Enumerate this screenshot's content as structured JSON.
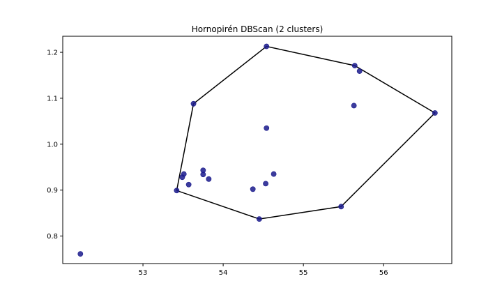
{
  "chart_data": {
    "type": "scatter",
    "title": "Hornopirén DBScan (2 clusters)",
    "xlabel": "",
    "ylabel": "",
    "xlim": [
      52.0,
      56.85
    ],
    "ylim": [
      0.74,
      1.235
    ],
    "xticks": [
      53,
      54,
      55,
      56
    ],
    "yticks": [
      0.8,
      0.9,
      1.0,
      1.1,
      1.2
    ],
    "xtick_labels": [
      "53",
      "54",
      "55",
      "56"
    ],
    "ytick_labels": [
      "0.8",
      "0.9",
      "1.0",
      "1.1",
      "1.2"
    ],
    "grid": false,
    "points": [
      {
        "x": 52.22,
        "y": 0.761
      },
      {
        "x": 53.42,
        "y": 0.899
      },
      {
        "x": 53.49,
        "y": 0.928
      },
      {
        "x": 53.51,
        "y": 0.935
      },
      {
        "x": 53.57,
        "y": 0.912
      },
      {
        "x": 53.63,
        "y": 1.088
      },
      {
        "x": 53.75,
        "y": 0.943
      },
      {
        "x": 53.75,
        "y": 0.934
      },
      {
        "x": 53.82,
        "y": 0.924
      },
      {
        "x": 54.37,
        "y": 0.902
      },
      {
        "x": 54.45,
        "y": 0.837
      },
      {
        "x": 54.53,
        "y": 0.914
      },
      {
        "x": 54.54,
        "y": 1.035
      },
      {
        "x": 54.54,
        "y": 1.213
      },
      {
        "x": 54.63,
        "y": 0.935
      },
      {
        "x": 55.47,
        "y": 0.864
      },
      {
        "x": 55.63,
        "y": 1.084
      },
      {
        "x": 55.64,
        "y": 1.171
      },
      {
        "x": 55.7,
        "y": 1.159
      },
      {
        "x": 56.64,
        "y": 1.068
      }
    ],
    "hull": [
      {
        "x": 53.42,
        "y": 0.899
      },
      {
        "x": 53.63,
        "y": 1.088
      },
      {
        "x": 54.54,
        "y": 1.213
      },
      {
        "x": 55.64,
        "y": 1.171
      },
      {
        "x": 56.64,
        "y": 1.068
      },
      {
        "x": 55.47,
        "y": 0.864
      },
      {
        "x": 54.45,
        "y": 0.837
      },
      {
        "x": 53.42,
        "y": 0.899
      }
    ],
    "point_color": "#1a1a8c",
    "hull_color": "#000000"
  }
}
